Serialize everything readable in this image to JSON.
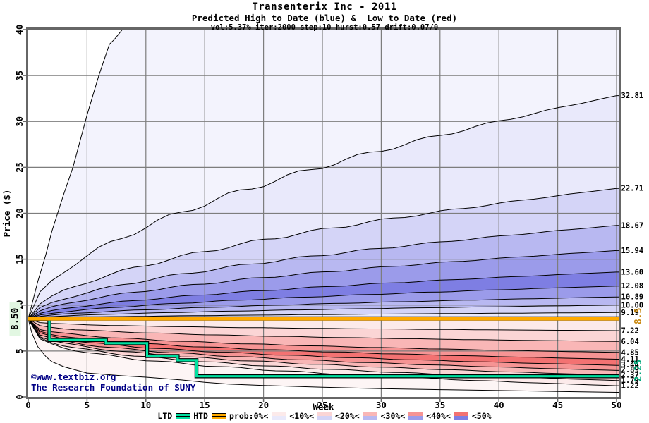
{
  "header": {
    "title": "Transenterix Inc - 2011",
    "subtitle": "Predicted High to Date (blue) &  Low to Date (red)",
    "params": "vol:5.37% iter:2000 step:10 hurst:0.57 drift:0.07/0"
  },
  "watermark": {
    "line1": "©www.textbiz.org",
    "line2": "The Research Foundation of SUNY"
  },
  "legend": {
    "ltd_label": "LTD",
    "htd_label": "HTD",
    "prob_prefix": "prob:0%<",
    "prob_items": [
      {
        "label": "<10%<",
        "red": "#fceaea",
        "blue": "#e9e9fb"
      },
      {
        "label": "<20%<",
        "red": "#fbd5d5",
        "blue": "#d4d4f7"
      },
      {
        "label": "<30%<",
        "red": "#f9b6b6",
        "blue": "#b8b8f1"
      },
      {
        "label": "<40%<",
        "red": "#f69494",
        "blue": "#9b9bea"
      },
      {
        "label": "<50%",
        "red": "#f37272",
        "blue": "#7e7ee3"
      }
    ]
  },
  "chart_data": {
    "type": "area",
    "title": "Transenterix Inc - 2011",
    "xlabel": "Week",
    "ylabel": "Price ($)",
    "xlim": [
      0,
      50
    ],
    "ylim": [
      0,
      40
    ],
    "x_ticks": [
      0,
      5,
      10,
      15,
      20,
      25,
      30,
      35,
      40,
      45,
      50
    ],
    "y_ticks": [
      0,
      5,
      10,
      15,
      20,
      25,
      30,
      35,
      40
    ],
    "grid": true,
    "start_price": 8.5,
    "start_price_label": "8.50",
    "high_to_date": {
      "value": 8.5,
      "label": "8.5",
      "color": "#ffaa00"
    },
    "low_to_date": {
      "final_value": 2.25,
      "final_label": "2.25",
      "color": "#00e0a0",
      "steps": [
        [
          0,
          8.5
        ],
        [
          1.8,
          6.2
        ],
        [
          6.6,
          5.85
        ],
        [
          10.1,
          4.45
        ],
        [
          12.7,
          4.0
        ],
        [
          14.3,
          2.25
        ]
      ]
    },
    "high_percentile_ends": [
      9.19,
      10.0,
      10.89,
      12.08,
      13.6,
      15.94,
      18.67,
      22.71,
      32.81
    ],
    "high_labels": [
      "9.19",
      "10.00",
      "10.89",
      "12.08",
      "13.60",
      "15.94",
      "18.67",
      "22.71",
      "32.81"
    ],
    "low_percentile_ends": [
      7.22,
      6.04,
      4.85,
      4.11,
      3.44,
      2.89,
      2.37,
      1.79,
      1.22
    ],
    "low_labels": [
      "7.22",
      "6.04",
      "4.85",
      "4.11",
      "3.44",
      "2.89",
      "2.37",
      "1.79",
      "1.22"
    ],
    "max_envelope": [
      [
        0,
        8.5
      ],
      [
        0.3,
        10
      ],
      [
        0.8,
        12.5
      ],
      [
        1.5,
        15.5
      ],
      [
        2,
        18
      ],
      [
        3,
        22
      ],
      [
        3.8,
        25
      ],
      [
        5,
        30.7
      ],
      [
        6,
        35
      ],
      [
        6.9,
        38.4
      ],
      [
        7.3,
        38.9
      ],
      [
        8.0,
        40.5
      ],
      [
        8.4,
        41.5
      ]
    ],
    "min_envelope": [
      [
        0,
        8.5
      ],
      [
        0.3,
        7.0
      ],
      [
        0.8,
        5.5
      ],
      [
        1.5,
        4.4
      ],
      [
        2,
        3.85
      ],
      [
        3,
        3.3
      ],
      [
        4,
        2.95
      ],
      [
        5,
        2.6
      ],
      [
        6,
        2.5
      ],
      [
        8,
        2.3
      ],
      [
        10,
        2.15
      ],
      [
        13,
        1.85
      ],
      [
        15,
        1.6
      ],
      [
        17,
        1.4
      ],
      [
        20,
        1.25
      ],
      [
        25,
        1.05
      ],
      [
        30,
        0.9
      ],
      [
        35,
        0.8
      ],
      [
        40,
        0.7
      ],
      [
        45,
        0.6
      ],
      [
        50,
        0.5
      ]
    ],
    "curve_exponent_high": 0.55,
    "curve_exponent_low": 0.3,
    "band_shades_blue": {
      "p0": "#f3f3fd",
      "p10": "#e9e9fb",
      "p20": "#d4d4f7",
      "p30": "#b8b8f1",
      "p40": "#9b9bea",
      "p50": "#7e7ee3"
    },
    "band_shades_red": {
      "p0": "#fdf5f5",
      "p10": "#fceaea",
      "p20": "#fbd5d5",
      "p30": "#f9b6b6",
      "p40": "#f69494",
      "p50": "#f37272"
    },
    "colors": {
      "grid": "#7d7d7d",
      "border": "#666666",
      "curve": "#000000",
      "htd_label": "#c8860b",
      "ltd_label": "#00a87c",
      "watermark": "#000085",
      "start_label_bg": "#e2f7e2"
    }
  }
}
